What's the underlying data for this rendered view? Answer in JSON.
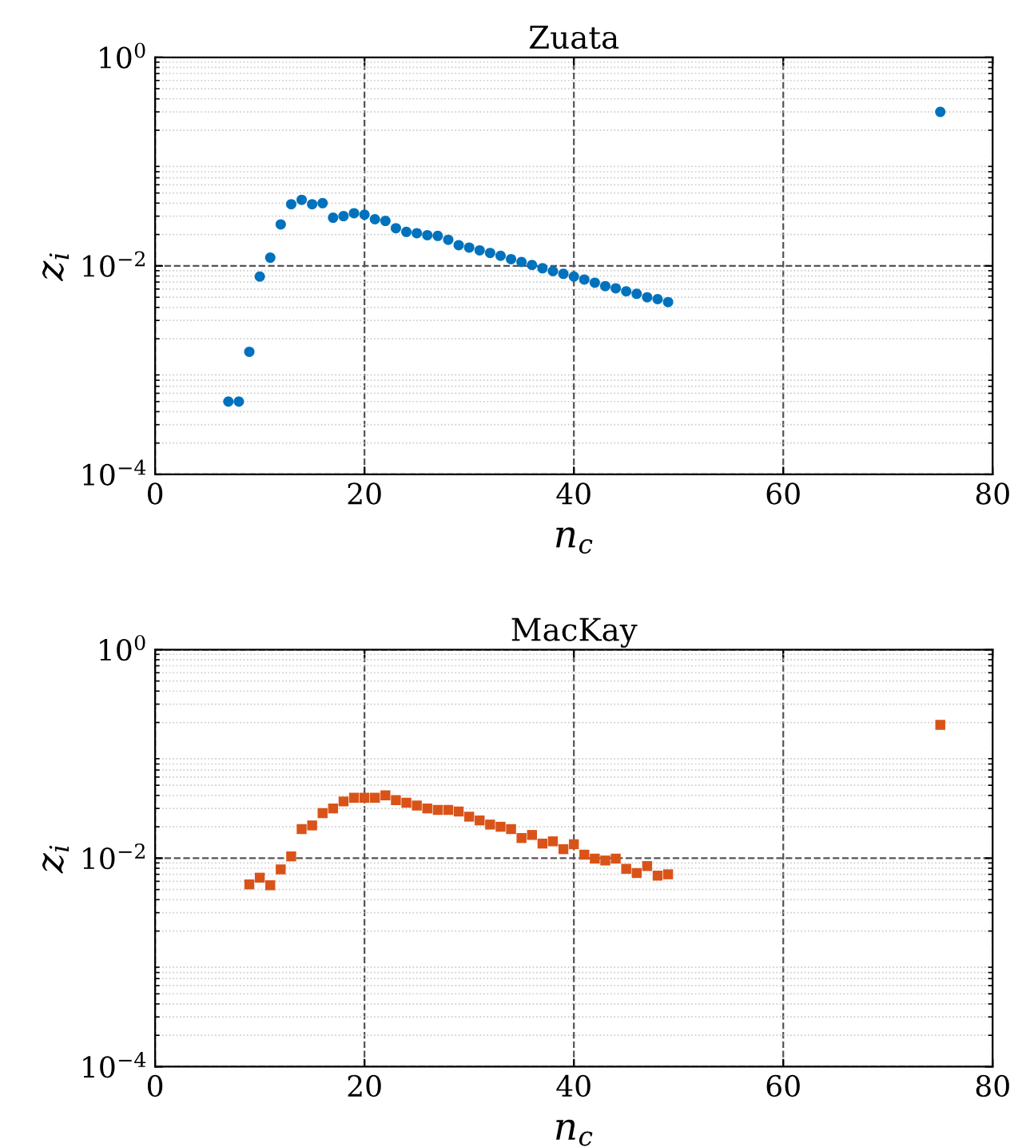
{
  "chart_data": [
    {
      "type": "scatter",
      "title": "Zuata",
      "xlabel": "n$_{c}$",
      "ylabel": "z$_{i}$",
      "log": "y",
      "grid": true,
      "marker": "circle",
      "xlim": [
        0,
        80
      ],
      "xticks": [
        0,
        20,
        40,
        60,
        80
      ],
      "ylim": [
        0.0001,
        1
      ],
      "yticks": [
        {
          "value": 0.0001,
          "label": "10$^{−4}$"
        },
        {
          "value": 0.01,
          "label": "10$^{−2}$"
        },
        {
          "value": 1,
          "label": "10$^{0}$"
        }
      ],
      "series": [
        {
          "color": "#0072bd",
          "x": [
            7,
            8,
            9,
            10,
            11,
            12,
            13,
            14,
            15,
            16,
            17,
            18,
            19,
            20,
            21,
            22,
            23,
            24,
            25,
            26,
            27,
            28,
            29,
            30,
            31,
            32,
            33,
            34,
            35,
            36,
            37,
            38,
            39,
            40,
            41,
            42,
            43,
            44,
            45,
            46,
            47,
            48,
            49,
            75
          ],
          "values": [
            0.0005,
            0.0005,
            0.0015,
            0.0079,
            0.012,
            0.025,
            0.039,
            0.043,
            0.039,
            0.04,
            0.029,
            0.03,
            0.032,
            0.031,
            0.028,
            0.027,
            0.023,
            0.0212,
            0.0206,
            0.0197,
            0.0194,
            0.0178,
            0.0158,
            0.015,
            0.0141,
            0.0133,
            0.0125,
            0.0116,
            0.0109,
            0.0102,
            0.0095,
            0.0089,
            0.0084,
            0.0079,
            0.0074,
            0.0069,
            0.0064,
            0.0061,
            0.0057,
            0.0054,
            0.005,
            0.0048,
            0.0045,
            0.3
          ]
        }
      ]
    },
    {
      "type": "scatter",
      "title": "MacKay",
      "xlabel": "n$_{c}$",
      "ylabel": "z$_{i}$",
      "log": "y",
      "grid": true,
      "marker": "square",
      "xlim": [
        0,
        80
      ],
      "xticks": [
        0,
        20,
        40,
        60,
        80
      ],
      "ylim": [
        0.0001,
        1
      ],
      "yticks": [
        {
          "value": 0.0001,
          "label": "10$^{−4}$"
        },
        {
          "value": 0.01,
          "label": "10$^{−2}$"
        },
        {
          "value": 1,
          "label": "10$^{0}$"
        }
      ],
      "series": [
        {
          "color": "#d95319",
          "x": [
            9,
            10,
            11,
            12,
            13,
            14,
            15,
            16,
            17,
            18,
            19,
            20,
            21,
            22,
            23,
            24,
            25,
            26,
            27,
            28,
            29,
            30,
            31,
            32,
            33,
            34,
            35,
            36,
            37,
            38,
            39,
            40,
            41,
            42,
            43,
            44,
            45,
            46,
            47,
            48,
            49,
            75
          ],
          "values": [
            0.0056,
            0.0065,
            0.0055,
            0.0078,
            0.0104,
            0.019,
            0.0206,
            0.027,
            0.03,
            0.035,
            0.038,
            0.038,
            0.038,
            0.04,
            0.036,
            0.034,
            0.032,
            0.03,
            0.029,
            0.029,
            0.028,
            0.025,
            0.023,
            0.021,
            0.02,
            0.019,
            0.0156,
            0.0167,
            0.0138,
            0.0145,
            0.0122,
            0.0136,
            0.0108,
            0.0099,
            0.0095,
            0.0099,
            0.0079,
            0.0072,
            0.0084,
            0.0068,
            0.007,
            0.19
          ]
        }
      ]
    }
  ]
}
